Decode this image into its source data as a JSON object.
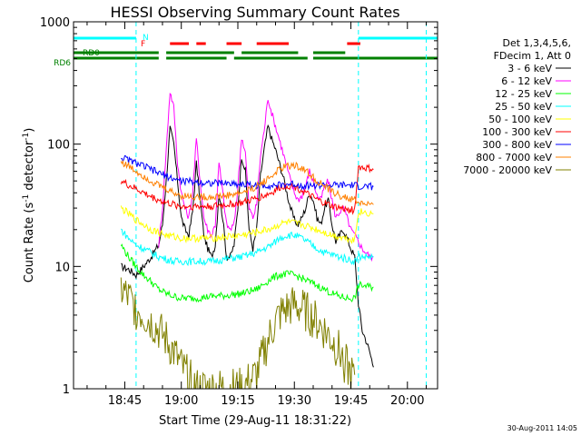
{
  "chart_data": {
    "type": "line",
    "title": "HESSI Observing Summary Count Rates",
    "xlabel": "Start Time (29-Aug-11 18:31:22)",
    "ylabel_main": "Count Rate (s",
    "ylabel_sup1": "-1",
    "ylabel_mid": " detector",
    "ylabel_sup2": "-1",
    "ylabel_end": ")",
    "yscale": "log",
    "ylim": [
      1,
      1000
    ],
    "xlim_minutes": [
      31.4,
      128
    ],
    "x_ticks": [
      {
        "label": "18:45",
        "minute": 45
      },
      {
        "label": "19:00",
        "minute": 60
      },
      {
        "label": "19:15",
        "minute": 75
      },
      {
        "label": "19:30",
        "minute": 90
      },
      {
        "label": "19:45",
        "minute": 105
      },
      {
        "label": "20:00",
        "minute": 120
      }
    ],
    "y_ticks": [
      {
        "label": "1",
        "value": 1
      },
      {
        "label": "10",
        "value": 10
      },
      {
        "label": "100",
        "value": 100
      },
      {
        "label": "1000",
        "value": 1000
      }
    ],
    "legend_placement": "top-right",
    "legend_header": [
      "Det 1,3,4,5,6,",
      "FDecim 1, Att 0"
    ],
    "flags": [
      {
        "label": "N",
        "color": "#00ffff",
        "segments": [
          [
            31.4,
            48
          ],
          [
            107,
            128
          ]
        ]
      },
      {
        "label": "F",
        "color": "#ff0000",
        "segments": [
          [
            57,
            62
          ],
          [
            64,
            66.5
          ],
          [
            72,
            76
          ],
          [
            80,
            88.5
          ],
          [
            104,
            107.5
          ]
        ]
      },
      {
        "label": "RD0",
        "color": "#008000",
        "segments": [
          [
            31.4,
            54
          ],
          [
            56,
            74
          ],
          [
            76,
            91
          ],
          [
            95,
            103.5
          ]
        ]
      },
      {
        "label": "RD6",
        "color": "#008000",
        "segments": [
          [
            31.4,
            54
          ],
          [
            56,
            72
          ],
          [
            74,
            93.5
          ],
          [
            95,
            128
          ]
        ]
      }
    ],
    "vlines": [
      {
        "minute": 48,
        "color": "#00ffff"
      },
      {
        "minute": 107,
        "color": "#00ffff"
      },
      {
        "minute": 125,
        "color": "#00ffff"
      }
    ],
    "series": [
      {
        "name": "3 - 6 keV",
        "color": "#000000",
        "x": [
          44,
          46,
          48,
          50,
          52,
          54,
          55,
          56,
          57,
          58,
          59,
          60,
          61,
          62,
          63,
          64,
          65,
          66,
          67,
          68,
          69,
          70,
          71,
          72,
          73,
          74,
          75,
          76,
          77,
          78,
          79,
          80,
          81,
          82,
          83,
          84,
          85,
          86,
          87,
          88,
          89,
          90,
          91,
          92,
          93,
          94,
          95,
          96,
          97,
          98,
          99,
          100,
          101,
          102,
          103,
          104,
          105,
          106,
          107,
          108,
          109,
          110,
          111
        ],
        "y": [
          10,
          9.5,
          8.5,
          10,
          12,
          15,
          22,
          50,
          135,
          100,
          50,
          25,
          20,
          18,
          28,
          70,
          35,
          18,
          14,
          12,
          15,
          40,
          25,
          12,
          12,
          15,
          30,
          80,
          60,
          20,
          14,
          20,
          55,
          90,
          140,
          110,
          90,
          70,
          55,
          40,
          30,
          24,
          22,
          25,
          30,
          40,
          35,
          25,
          22,
          30,
          35,
          22,
          16,
          18,
          20,
          17,
          14,
          12,
          5,
          3,
          2.5,
          2,
          1.5
        ]
      },
      {
        "name": "6 - 12 keV",
        "color": "#ff00ff",
        "x": [
          54,
          55,
          56,
          57,
          58,
          59,
          60,
          61,
          62,
          63,
          64,
          65,
          66,
          67,
          68,
          69,
          70,
          71,
          72,
          73,
          74,
          75,
          76,
          77,
          78,
          79,
          80,
          81,
          82,
          83,
          84,
          85,
          86,
          87,
          88,
          89,
          90,
          91,
          92,
          93,
          94,
          95,
          96,
          97,
          98,
          99,
          100,
          101,
          102,
          103,
          104,
          105,
          106,
          107,
          108,
          109,
          110,
          111
        ],
        "y": [
          15,
          30,
          90,
          270,
          200,
          70,
          40,
          30,
          25,
          40,
          110,
          50,
          25,
          20,
          18,
          22,
          70,
          40,
          22,
          20,
          22,
          45,
          115,
          85,
          30,
          25,
          32,
          80,
          130,
          240,
          180,
          140,
          110,
          85,
          65,
          50,
          40,
          35,
          38,
          45,
          60,
          50,
          38,
          35,
          45,
          50,
          35,
          25,
          28,
          30,
          25,
          20,
          18,
          16,
          14,
          13,
          12,
          12
        ]
      },
      {
        "name": "12 - 25 keV",
        "color": "#00ff00",
        "x": [
          44,
          46,
          48,
          50,
          52,
          54,
          56,
          58,
          60,
          64,
          68,
          72,
          76,
          80,
          84,
          86,
          88,
          90,
          92,
          94,
          96,
          98,
          100,
          102,
          104,
          106,
          107,
          108,
          110,
          111
        ],
        "y": [
          15,
          12,
          10,
          8.5,
          7.5,
          6.5,
          6,
          5.7,
          5.5,
          5.5,
          5.7,
          5.8,
          6,
          6.5,
          8,
          8.5,
          8.7,
          8.5,
          8,
          7.5,
          7,
          6.5,
          6,
          5.7,
          5.5,
          5.5,
          7,
          7,
          6.8,
          6.8
        ]
      },
      {
        "name": "25 - 50 keV",
        "color": "#00ffff",
        "x": [
          44,
          46,
          48,
          50,
          52,
          54,
          56,
          58,
          60,
          64,
          68,
          72,
          76,
          80,
          84,
          86,
          88,
          90,
          92,
          94,
          96,
          98,
          100,
          102,
          104,
          106,
          107,
          108,
          110,
          111
        ],
        "y": [
          20,
          17,
          15,
          14,
          13,
          12,
          11.5,
          11,
          11,
          11,
          11,
          11.5,
          12,
          13,
          15,
          17,
          18,
          18,
          17,
          15.5,
          14,
          13,
          12.5,
          12,
          11.5,
          11,
          12,
          12,
          12,
          12
        ]
      },
      {
        "name": "50 - 100 keV",
        "color": "#ffff00",
        "x": [
          44,
          46,
          48,
          50,
          52,
          54,
          56,
          58,
          60,
          64,
          68,
          72,
          76,
          80,
          84,
          86,
          88,
          90,
          92,
          94,
          96,
          98,
          100,
          102,
          104,
          106,
          107,
          108,
          110,
          111
        ],
        "y": [
          30,
          27,
          24,
          22,
          20,
          19,
          18,
          17.5,
          17,
          17,
          17,
          17.5,
          18,
          19,
          20.5,
          22,
          23,
          22.5,
          22,
          21,
          20,
          19,
          18,
          17.5,
          17,
          16.5,
          28,
          28,
          27,
          27
        ]
      },
      {
        "name": "100 - 300 keV",
        "color": "#ff0000",
        "x": [
          44,
          46,
          48,
          50,
          52,
          54,
          56,
          58,
          60,
          64,
          68,
          72,
          76,
          80,
          84,
          86,
          88,
          90,
          92,
          94,
          96,
          98,
          100,
          102,
          104,
          106,
          107,
          108,
          110,
          111
        ],
        "y": [
          50,
          46,
          43,
          40,
          37,
          35,
          33,
          32,
          31,
          31,
          31,
          32,
          33,
          36,
          40,
          44,
          46,
          45,
          42,
          38,
          35,
          33,
          31,
          30,
          29,
          29,
          65,
          64,
          63,
          62
        ]
      },
      {
        "name": "300 - 800 keV",
        "color": "#0000ff",
        "x": [
          44,
          46,
          48,
          50,
          52,
          54,
          56,
          58,
          60,
          64,
          68,
          72,
          76,
          80,
          84,
          86,
          88,
          90,
          92,
          94,
          96,
          98,
          100,
          102,
          104,
          106,
          107,
          108,
          110,
          111
        ],
        "y": [
          78,
          74,
          70,
          66,
          62,
          58,
          55,
          52,
          50,
          49,
          48,
          48,
          47,
          46,
          46,
          46,
          47,
          47,
          46,
          46,
          46,
          46,
          46,
          46,
          46,
          46,
          45,
          45,
          45,
          45
        ]
      },
      {
        "name": "800 - 7000 keV",
        "color": "#ff8000",
        "x": [
          44,
          46,
          48,
          50,
          52,
          54,
          56,
          58,
          60,
          64,
          68,
          72,
          76,
          80,
          84,
          86,
          88,
          90,
          92,
          94,
          96,
          98,
          100,
          102,
          104,
          106,
          107,
          108,
          110,
          111
        ],
        "y": [
          72,
          66,
          60,
          55,
          50,
          46,
          43,
          40,
          38,
          37,
          37,
          38,
          40,
          45,
          55,
          62,
          66,
          67,
          64,
          57,
          50,
          45,
          41,
          38,
          36,
          35,
          33,
          33,
          32,
          32
        ]
      },
      {
        "name": "7000 - 20000 keV",
        "color": "#808000",
        "x": [
          44,
          46,
          48,
          50,
          52,
          54,
          56,
          58,
          60,
          64,
          68,
          72,
          76,
          80,
          82,
          84,
          86,
          88,
          90,
          92,
          94,
          96,
          98,
          100,
          102,
          104,
          105,
          106
        ],
        "y": [
          6.5,
          5.5,
          4.5,
          4,
          3.5,
          3,
          2.5,
          2,
          1.5,
          1,
          1,
          1,
          1,
          1.3,
          2,
          3,
          4,
          4.5,
          4.8,
          4.5,
          4,
          3.5,
          3,
          2.5,
          2,
          1.5,
          1.3,
          1.3
        ]
      }
    ]
  },
  "footer": {
    "timestamp": "30-Aug-2011 14:05"
  }
}
